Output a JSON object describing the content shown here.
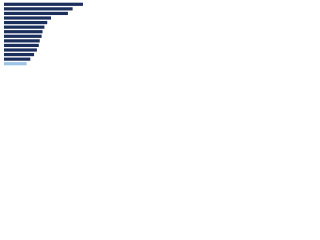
{
  "chart_data": {
    "type": "hbar",
    "categories": [
      null,
      null,
      null,
      null,
      null,
      null,
      null,
      null,
      null,
      null,
      null,
      null,
      null,
      null
    ],
    "values": [
      84,
      73,
      68,
      50,
      46,
      43,
      41,
      40,
      38,
      37,
      35,
      32,
      28,
      24
    ],
    "colors": [
      "#1b2f5c",
      "#1b2f5c",
      "#1b2f5c",
      "#1b2f5c",
      "#1b2f5c",
      "#1b2f5c",
      "#1b2f5c",
      "#1b2f5c",
      "#1b2f5c",
      "#1b2f5c",
      "#1b2f5c",
      "#1b2f5c",
      "#1b2f5c",
      "#9dc3e6"
    ],
    "xlim": [
      0,
      100
    ]
  }
}
